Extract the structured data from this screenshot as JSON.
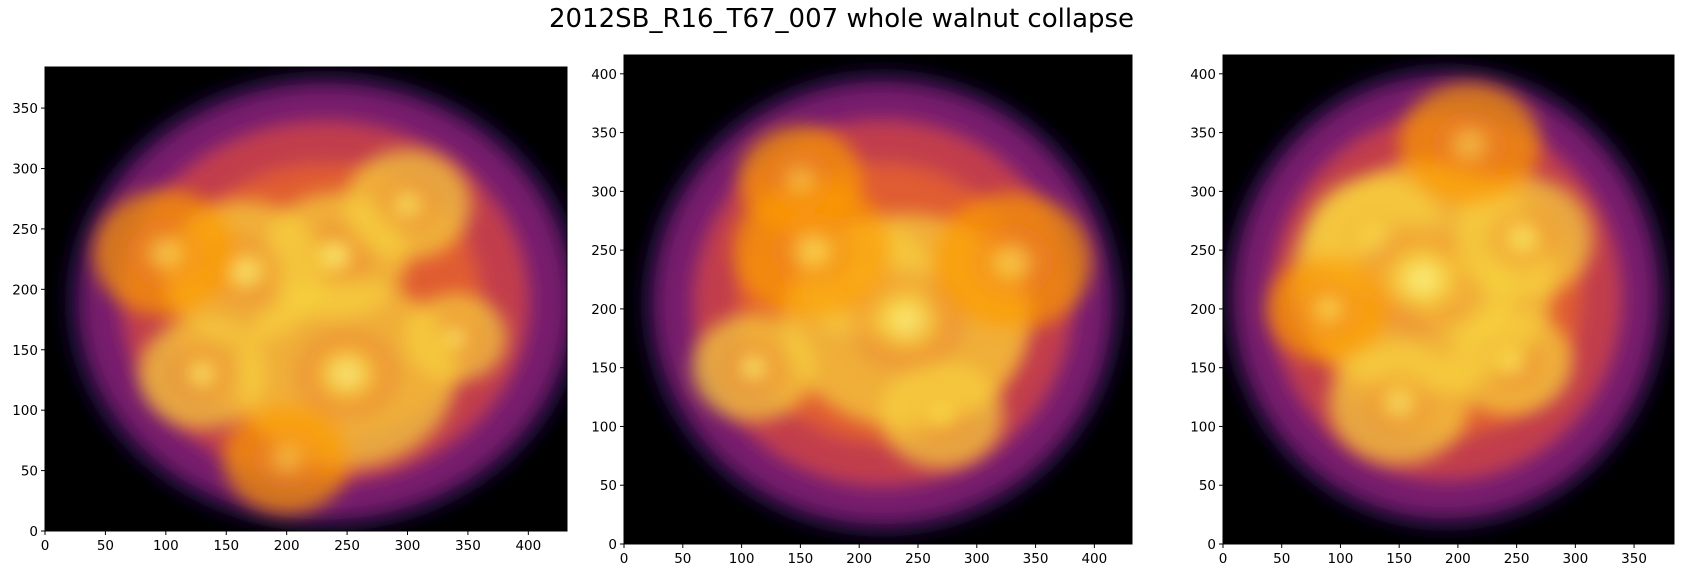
{
  "figure": {
    "title": "2012SB_R16_T67_007 whole walnut collapse"
  },
  "chart_data": [
    {
      "type": "heatmap",
      "colormap": "inferno",
      "background_color": "#000000",
      "grid": false,
      "xlim": [
        0,
        432
      ],
      "ylim": [
        0,
        384
      ],
      "x_ticks": [
        0,
        50,
        100,
        150,
        200,
        250,
        300,
        350,
        400
      ],
      "y_ticks": [
        0,
        50,
        100,
        150,
        200,
        250,
        300,
        350
      ],
      "blob_center": [
        232,
        190
      ],
      "blob_radii": [
        215,
        190
      ],
      "hotspots": [
        {
          "x": 240,
          "y": 228,
          "r": 40,
          "v": 1.0
        },
        {
          "x": 340,
          "y": 160,
          "r": 28,
          "v": 0.95
        },
        {
          "x": 165,
          "y": 215,
          "r": 45,
          "v": 0.85
        },
        {
          "x": 130,
          "y": 130,
          "r": 35,
          "v": 0.8
        },
        {
          "x": 300,
          "y": 270,
          "r": 35,
          "v": 0.75
        },
        {
          "x": 250,
          "y": 130,
          "r": 60,
          "v": 0.8
        },
        {
          "x": 100,
          "y": 230,
          "r": 40,
          "v": 0.6
        },
        {
          "x": 200,
          "y": 60,
          "r": 35,
          "v": 0.5
        }
      ]
    },
    {
      "type": "heatmap",
      "colormap": "inferno",
      "background_color": "#000000",
      "grid": false,
      "xlim": [
        0,
        432
      ],
      "ylim": [
        0,
        416
      ],
      "x_ticks": [
        0,
        50,
        100,
        150,
        200,
        250,
        300,
        350,
        400
      ],
      "y_ticks": [
        0,
        50,
        100,
        150,
        200,
        250,
        300,
        350,
        400
      ],
      "blob_center": [
        220,
        205
      ],
      "blob_radii": [
        205,
        198
      ],
      "hotspots": [
        {
          "x": 205,
          "y": 225,
          "r": 38,
          "v": 1.0
        },
        {
          "x": 270,
          "y": 110,
          "r": 35,
          "v": 0.9
        },
        {
          "x": 110,
          "y": 150,
          "r": 35,
          "v": 0.85
        },
        {
          "x": 240,
          "y": 190,
          "r": 70,
          "v": 0.75
        },
        {
          "x": 160,
          "y": 250,
          "r": 45,
          "v": 0.65
        },
        {
          "x": 330,
          "y": 240,
          "r": 45,
          "v": 0.6
        },
        {
          "x": 150,
          "y": 310,
          "r": 35,
          "v": 0.5
        }
      ]
    },
    {
      "type": "heatmap",
      "colormap": "inferno",
      "background_color": "#000000",
      "grid": false,
      "xlim": [
        0,
        384
      ],
      "ylim": [
        0,
        416
      ],
      "x_ticks": [
        0,
        50,
        100,
        150,
        200,
        250,
        300,
        350
      ],
      "y_ticks": [
        0,
        50,
        100,
        150,
        200,
        250,
        300,
        350,
        400
      ],
      "blob_center": [
        190,
        210
      ],
      "blob_radii": [
        190,
        198
      ],
      "hotspots": [
        {
          "x": 130,
          "y": 260,
          "r": 40,
          "v": 1.0
        },
        {
          "x": 245,
          "y": 155,
          "r": 35,
          "v": 0.95
        },
        {
          "x": 205,
          "y": 210,
          "r": 28,
          "v": 0.95
        },
        {
          "x": 170,
          "y": 225,
          "r": 75,
          "v": 0.8
        },
        {
          "x": 255,
          "y": 260,
          "r": 40,
          "v": 0.75
        },
        {
          "x": 90,
          "y": 200,
          "r": 35,
          "v": 0.65
        },
        {
          "x": 150,
          "y": 120,
          "r": 40,
          "v": 0.7
        },
        {
          "x": 210,
          "y": 340,
          "r": 40,
          "v": 0.55
        }
      ]
    }
  ]
}
